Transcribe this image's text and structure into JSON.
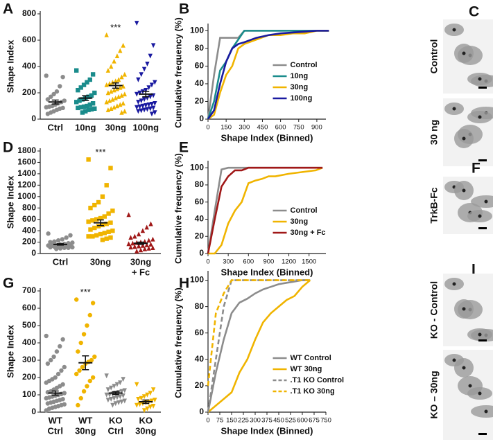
{
  "chart_data": [
    {
      "type": "strip",
      "panel": "A",
      "ylabel": "Shape Index",
      "ylim": [
        0,
        800
      ],
      "yticks": [
        0,
        200,
        400,
        600,
        800
      ],
      "groups": [
        {
          "name": "Ctrl",
          "color": "#8c8c8c",
          "marker": "circle",
          "mean": 130,
          "sem": 15,
          "values": [
            330,
            320,
            250,
            210,
            190,
            170,
            150,
            140,
            130,
            120,
            110,
            100,
            95,
            90,
            85,
            80,
            70,
            60,
            50,
            40
          ]
        },
        {
          "name": "10ng",
          "color": "#1a8c8c",
          "marker": "square",
          "mean": 160,
          "sem": 18,
          "values": [
            370,
            340,
            300,
            280,
            260,
            240,
            220,
            200,
            180,
            170,
            160,
            150,
            140,
            130,
            120,
            110,
            100,
            95,
            90,
            85,
            80,
            75,
            70,
            60,
            50
          ]
        },
        {
          "name": "30ng",
          "color": "#f0b400",
          "marker": "triangle",
          "mean": 255,
          "sem": 20,
          "annotation": "***",
          "values": [
            640,
            560,
            520,
            480,
            440,
            400,
            370,
            340,
            320,
            300,
            290,
            280,
            270,
            260,
            250,
            240,
            230,
            220,
            210,
            200,
            190,
            180,
            170,
            160,
            150,
            140,
            130,
            120,
            110,
            100,
            90,
            80,
            70,
            60,
            50
          ]
        },
        {
          "name": "100ng",
          "color": "#1a1aa0",
          "marker": "triangle-down",
          "mean": 190,
          "sem": 20,
          "values": [
            730,
            560,
            480,
            420,
            380,
            340,
            300,
            280,
            260,
            240,
            220,
            210,
            200,
            190,
            180,
            170,
            160,
            150,
            140,
            130,
            120,
            115,
            110,
            105,
            100,
            95,
            90,
            85,
            80,
            75,
            70,
            65,
            60,
            50,
            40
          ]
        }
      ]
    },
    {
      "type": "line",
      "panel": "B",
      "ylabel": "Cumulative frequency (%)",
      "xlabel": "Shape Index (Binned)",
      "x": [
        0,
        50,
        100,
        150,
        200,
        250,
        300,
        400,
        500,
        600,
        700,
        800,
        900,
        1000
      ],
      "xlim": [
        0,
        975
      ],
      "xticks": [
        0,
        150,
        300,
        450,
        600,
        750,
        900
      ],
      "ylim": [
        0,
        105
      ],
      "yticks": [
        0,
        20,
        40,
        60,
        80,
        100
      ],
      "legend": "right",
      "series": [
        {
          "name": "Control",
          "color": "#8c8c8c",
          "values": [
            0,
            50,
            92,
            92,
            92,
            92,
            100,
            100,
            100,
            100,
            100,
            100,
            100,
            100
          ]
        },
        {
          "name": "10ng",
          "color": "#1a8c8c",
          "values": [
            0,
            20,
            55,
            65,
            80,
            90,
            100,
            100,
            100,
            100,
            100,
            100,
            100,
            100
          ]
        },
        {
          "name": "30ng",
          "color": "#f0b400",
          "values": [
            0,
            5,
            30,
            50,
            60,
            80,
            85,
            90,
            95,
            95,
            97,
            97,
            100,
            100
          ]
        },
        {
          "name": "100ng",
          "color": "#1a1aa0",
          "values": [
            0,
            10,
            40,
            65,
            80,
            85,
            87,
            92,
            95,
            97,
            98,
            99,
            100,
            100
          ]
        }
      ]
    },
    {
      "type": "strip",
      "panel": "D",
      "ylabel": "Shape Index",
      "ylim": [
        0,
        1800
      ],
      "yticks": [
        0,
        200,
        400,
        600,
        800,
        1000,
        1200,
        1400,
        1600,
        1800
      ],
      "groups": [
        {
          "name": "Ctrl",
          "color": "#8c8c8c",
          "marker": "circle",
          "mean": 160,
          "sem": 12,
          "values": [
            350,
            320,
            280,
            250,
            230,
            210,
            200,
            190,
            180,
            170,
            160,
            150,
            150,
            140,
            140,
            130,
            130,
            120,
            120,
            110,
            110,
            100,
            100,
            90,
            80
          ]
        },
        {
          "name": "30ng",
          "color": "#f0b400",
          "marker": "square",
          "mean": 540,
          "sem": 50,
          "annotation": "***",
          "values": [
            1650,
            1500,
            1200,
            1000,
            900,
            850,
            800,
            750,
            700,
            650,
            620,
            600,
            580,
            560,
            540,
            520,
            500,
            480,
            450,
            420,
            400,
            380,
            360,
            340,
            320,
            300,
            300,
            280,
            260,
            240
          ]
        },
        {
          "name": [
            "30ng",
            "+ Fc"
          ],
          "color": "#a01818",
          "marker": "triangle",
          "mean": 180,
          "sem": 20,
          "values": [
            680,
            520,
            460,
            400,
            340,
            300,
            280,
            250,
            230,
            210,
            200,
            190,
            180,
            170,
            160,
            150,
            140,
            130,
            120,
            110,
            100,
            90,
            80,
            60,
            40
          ]
        }
      ]
    },
    {
      "type": "line",
      "panel": "E",
      "ylabel": "Cumulative frequency (%)",
      "xlabel": "Shape Index (Binned)",
      "x": [
        0,
        100,
        200,
        300,
        400,
        500,
        600,
        700,
        800,
        900,
        1000,
        1200,
        1400,
        1600,
        1700
      ],
      "xlim": [
        0,
        1750
      ],
      "xticks": [
        0,
        300,
        600,
        900,
        1200,
        1500
      ],
      "ylim": [
        0,
        105
      ],
      "yticks": [
        0,
        20,
        40,
        60,
        80,
        100
      ],
      "legend": "right",
      "series": [
        {
          "name": "Control",
          "color": "#8c8c8c",
          "values": [
            0,
            50,
            98,
            100,
            100,
            100,
            100,
            100,
            100,
            100,
            100,
            100,
            100,
            100,
            100
          ]
        },
        {
          "name": "30ng",
          "color": "#f0b400",
          "values": [
            0,
            0,
            10,
            35,
            50,
            60,
            82,
            85,
            87,
            90,
            90,
            93,
            95,
            97,
            100
          ]
        },
        {
          "name": "30ng + Fc",
          "color": "#a01818",
          "values": [
            0,
            40,
            78,
            90,
            97,
            97,
            100,
            100,
            100,
            100,
            100,
            100,
            100,
            100,
            100
          ]
        }
      ]
    },
    {
      "type": "strip",
      "panel": "G",
      "ylabel": "Shape Index",
      "ylim": [
        0,
        700
      ],
      "yticks": [
        0,
        100,
        200,
        300,
        400,
        500,
        600,
        700
      ],
      "groups": [
        {
          "name": [
            "WT",
            "Ctrl"
          ],
          "color": "#8c8c8c",
          "marker": "circle",
          "mean": 110,
          "sem": 12,
          "values": [
            440,
            420,
            380,
            350,
            320,
            300,
            280,
            260,
            240,
            220,
            200,
            190,
            180,
            170,
            160,
            150,
            140,
            130,
            120,
            115,
            110,
            105,
            100,
            95,
            90,
            85,
            80,
            75,
            70,
            65,
            60,
            55,
            50,
            45,
            40,
            35,
            30,
            25,
            20,
            10
          ]
        },
        {
          "name": [
            "WT",
            "30ng"
          ],
          "color": "#f0b400",
          "marker": "circle",
          "mean": 285,
          "sem": 40,
          "annotation": "***",
          "values": [
            650,
            630,
            560,
            500,
            450,
            400,
            350,
            320,
            300,
            290,
            280,
            260,
            240,
            220,
            200,
            180,
            150,
            120,
            80,
            40
          ]
        },
        {
          "name": [
            "KO",
            "Ctrl"
          ],
          "color": "#8c8c8c",
          "marker": "triangle-down",
          "mean": 110,
          "sem": 8,
          "values": [
            210,
            190,
            170,
            160,
            150,
            140,
            130,
            125,
            120,
            115,
            110,
            105,
            100,
            100,
            95,
            90,
            85,
            80,
            75,
            70,
            65,
            60,
            55,
            50,
            40
          ]
        },
        {
          "name": [
            "KO",
            "30ng"
          ],
          "color": "#f0b400",
          "marker": "triangle-down",
          "mean": 60,
          "sem": 10,
          "values": [
            160,
            130,
            110,
            100,
            90,
            80,
            75,
            70,
            65,
            60,
            55,
            50,
            45,
            40,
            35,
            30,
            20,
            10
          ]
        }
      ]
    },
    {
      "type": "line",
      "panel": "H",
      "ylabel": "Cumulative frequency (%)",
      "xlabel": "Shape Index (Binned)",
      "x": [
        0,
        50,
        100,
        150,
        200,
        250,
        300,
        350,
        400,
        450,
        500,
        550,
        600,
        650
      ],
      "xlim": [
        0,
        750
      ],
      "xticks": [
        0,
        75,
        150,
        225,
        300,
        375,
        450,
        525,
        600,
        675,
        750
      ],
      "ylim": [
        0,
        105
      ],
      "yticks": [
        0,
        20,
        40,
        60,
        80,
        100
      ],
      "legend": "right",
      "series": [
        {
          "name": "WT Control",
          "color": "#8c8c8c",
          "values": [
            0,
            30,
            55,
            75,
            83,
            86,
            90,
            93,
            95,
            97,
            98,
            99,
            100,
            100
          ]
        },
        {
          "name": "WT 30ng",
          "color": "#f0b400",
          "values": [
            0,
            5,
            10,
            15,
            30,
            40,
            55,
            68,
            75,
            80,
            85,
            88,
            95,
            100
          ]
        },
        {
          "name": ".T1 KO Control",
          "color": "#8c8c8c",
          "dash": true,
          "values": [
            0,
            40,
            80,
            100,
            100,
            100,
            100,
            100,
            100,
            100,
            100,
            100,
            100,
            100
          ]
        },
        {
          "name": ".T1 KO 30ng",
          "color": "#f0b400",
          "dash": true,
          "values": [
            20,
            75,
            90,
            100,
            100,
            100,
            100,
            100,
            100,
            100,
            100,
            100,
            100,
            100
          ]
        }
      ]
    }
  ],
  "image_panels": [
    {
      "panel": "C",
      "images": [
        "Control",
        "30 ng"
      ]
    },
    {
      "panel": "F",
      "images": [
        "TrkB-Fc"
      ]
    },
    {
      "panel": "I",
      "images": [
        "KO - Control",
        "KO – 30ng"
      ]
    }
  ]
}
